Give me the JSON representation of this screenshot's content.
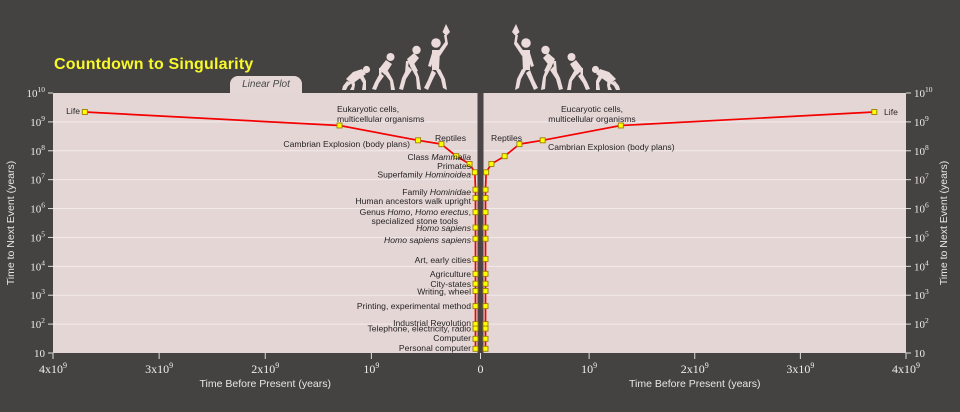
{
  "title": "Countdown to Singularity",
  "tab_label": "Linear Plot",
  "colors": {
    "page_bg": "#454342",
    "plot_bg": "#e5d6d6",
    "grid": "#f5eeee",
    "divider": "#4a4446",
    "line": "#f40000",
    "marker_fill": "#ffff00",
    "marker_stroke": "#9a7d00",
    "title_yellow": "#f8f82a",
    "silhouette": "#ebdbdb",
    "tick_text": "#efecec",
    "event_text": "#262424"
  },
  "chart_data": {
    "type": "line",
    "title": "Countdown to Singularity",
    "subtitle_tab": "Linear Plot",
    "layout_hint": "two mirrored panels, linear x (time before present), log y (time to next event), grid on, no legend",
    "x_axis": {
      "label": "Time Before Present (years)",
      "scale": "linear, mirrored about 0",
      "range_years_each_side": [
        0,
        4000000000
      ],
      "ticks_left": [
        "4x10^9",
        "3x10^9",
        "2x10^9",
        "10^9"
      ],
      "tick_zero": "0",
      "ticks_right": [
        "10^9",
        "2x10^9",
        "3x10^9",
        "4x10^9"
      ]
    },
    "y_axis": {
      "label": "Time to Next Event (years)",
      "scale": "log",
      "min": 10,
      "max": 10000000000,
      "ticks": [
        "10^10",
        "10^9",
        "10^8",
        "10^7",
        "10^6",
        "10^5",
        "10^4",
        "10^3",
        "10^2",
        "10"
      ]
    },
    "events": [
      {
        "id": "life",
        "lines": [
          [
            {
              "t": "Life"
            }
          ]
        ],
        "years_before_present": 3700000000,
        "time_to_next_event_years": 2200000000
      },
      {
        "id": "eukaryotic",
        "lines": [
          [
            {
              "t": "Eukaryotic cells,"
            }
          ],
          [
            {
              "t": "multicellular organisms"
            }
          ]
        ],
        "years_before_present": 1300000000,
        "time_to_next_event_years": 750000000
      },
      {
        "id": "cambrian",
        "lines": [
          [
            {
              "t": "Cambrian Explosion (body plans)"
            }
          ]
        ],
        "years_before_present": 560000000,
        "time_to_next_event_years": 230000000
      },
      {
        "id": "reptiles",
        "lines": [
          [
            {
              "t": "Reptiles"
            }
          ]
        ],
        "years_before_present": 340000000,
        "time_to_next_event_years": 170000000
      },
      {
        "id": "mammalia",
        "lines": [
          [
            {
              "t": "Class "
            },
            {
              "t": "Mammalia",
              "i": 1
            }
          ]
        ],
        "years_before_present": 200000000,
        "time_to_next_event_years": 65000000
      },
      {
        "id": "primates",
        "lines": [
          [
            {
              "t": "Primates"
            }
          ]
        ],
        "years_before_present": 75000000,
        "time_to_next_event_years": 35000000
      },
      {
        "id": "hominoidea",
        "lines": [
          [
            {
              "t": "Superfamily "
            },
            {
              "t": "Hominoidea",
              "i": 1
            }
          ]
        ],
        "years_before_present": 25000000,
        "time_to_next_event_years": 18000000
      },
      {
        "id": "hominidae",
        "lines": [
          [
            {
              "t": "Family "
            },
            {
              "t": "Hominidae",
              "i": 1
            }
          ]
        ],
        "years_before_present": 10000000,
        "time_to_next_event_years": 4500000
      },
      {
        "id": "upright",
        "lines": [
          [
            {
              "t": "Human ancestors walk upright"
            }
          ]
        ],
        "years_before_present": 5000000,
        "time_to_next_event_years": 2300000
      },
      {
        "id": "genus_homo",
        "lines": [
          [
            {
              "t": "Genus "
            },
            {
              "t": "Homo",
              "i": 1
            },
            {
              "t": ", "
            },
            {
              "t": "Homo erectus",
              "i": 1
            },
            {
              "t": ","
            }
          ],
          [
            {
              "t": "specialized stone tools"
            }
          ]
        ],
        "years_before_present": 2000000,
        "time_to_next_event_years": 750000
      },
      {
        "id": "homo_sapiens",
        "lines": [
          [
            {
              "t": "Homo sapiens",
              "i": 1
            }
          ]
        ],
        "years_before_present": 500000,
        "time_to_next_event_years": 220000
      },
      {
        "id": "homo_sapiens_sapiens",
        "lines": [
          [
            {
              "t": "Homo sapiens sapiens",
              "i": 1
            }
          ]
        ],
        "years_before_present": 150000,
        "time_to_next_event_years": 90000
      },
      {
        "id": "art_cities",
        "lines": [
          [
            {
              "t": "Art, early cities"
            }
          ]
        ],
        "years_before_present": 30000,
        "time_to_next_event_years": 18000
      },
      {
        "id": "agriculture",
        "lines": [
          [
            {
              "t": "Agriculture"
            }
          ]
        ],
        "years_before_present": 11000,
        "time_to_next_event_years": 5500
      },
      {
        "id": "city_states",
        "lines": [
          [
            {
              "t": "City-states"
            }
          ]
        ],
        "years_before_present": 5000,
        "time_to_next_event_years": 2500
      },
      {
        "id": "writing_wheel",
        "lines": [
          [
            {
              "t": "Writing, wheel"
            }
          ]
        ],
        "years_before_present": 3000,
        "time_to_next_event_years": 1400
      },
      {
        "id": "printing",
        "lines": [
          [
            {
              "t": "Printing, experimental method"
            }
          ]
        ],
        "years_before_present": 500,
        "time_to_next_event_years": 420
      },
      {
        "id": "industrial",
        "lines": [
          [
            {
              "t": "Industrial Revolution"
            }
          ]
        ],
        "years_before_present": 220,
        "time_to_next_event_years": 100
      },
      {
        "id": "telephone",
        "lines": [
          [
            {
              "t": "Telephone, electricity, radio"
            }
          ]
        ],
        "years_before_present": 110,
        "time_to_next_event_years": 70
      },
      {
        "id": "computer",
        "lines": [
          [
            {
              "t": "Computer"
            }
          ]
        ],
        "years_before_present": 60,
        "time_to_next_event_years": 31
      },
      {
        "id": "personal_computer",
        "lines": [
          [
            {
              "t": "Personal computer"
            }
          ]
        ],
        "years_before_present": 30,
        "time_to_next_event_years": 14
      }
    ],
    "right_side_labels": [
      {
        "id": "eukaryotic",
        "lines": [
          [
            {
              "t": "Eucaryotic cells,"
            }
          ],
          [
            {
              "t": "multicellular organisms"
            }
          ]
        ]
      },
      {
        "id": "reptiles",
        "lines": [
          [
            {
              "t": "Reptiles"
            }
          ]
        ]
      },
      {
        "id": "cambrian",
        "lines": [
          [
            {
              "t": "Cambrian Explosion (body plans)"
            }
          ]
        ]
      },
      {
        "id": "life",
        "lines": [
          [
            {
              "t": "Life"
            }
          ]
        ]
      }
    ]
  }
}
